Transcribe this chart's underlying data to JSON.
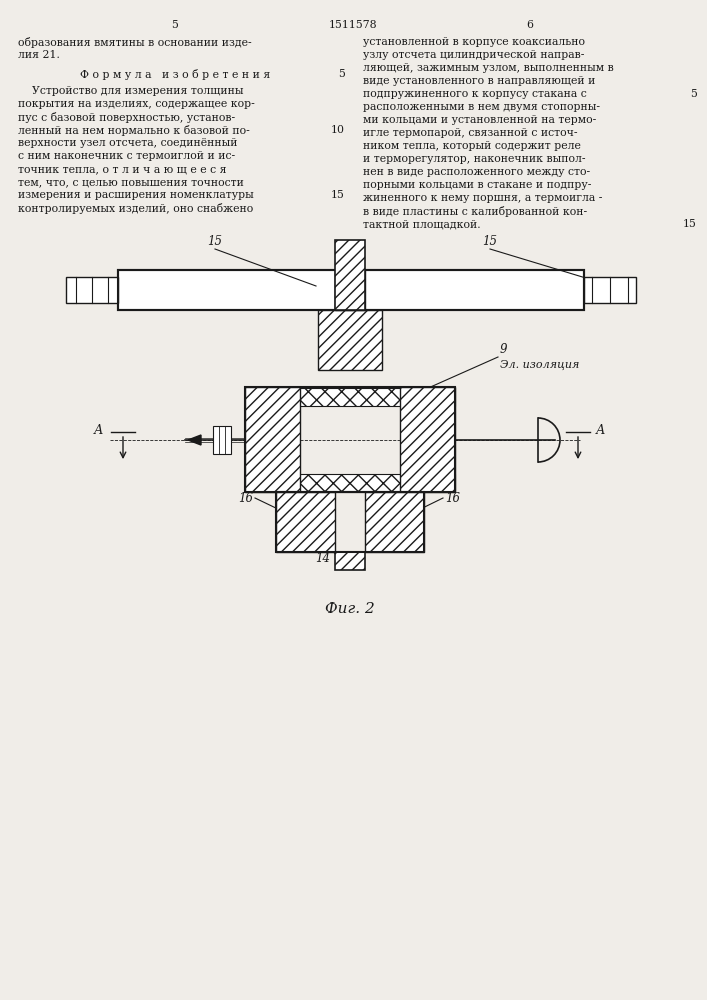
{
  "title": "1511578",
  "page_col_left": "5",
  "page_col_right": "6",
  "bg_color": "#f0ede8",
  "line_color": "#1a1a1a",
  "text_color": "#1a1a1a",
  "fig_caption": "Фиг. 2",
  "left_body_lines": [
    "    Устройство для измерения толщины",
    "покрытия на изделиях, содержащее кор-",
    "пус с базовой поверхностью, установ-",
    "ленный на нем нормально к базовой по-",
    "верхности узел отсчета, соединённый",
    "с ним наконечник с термоиглой и ис-",
    "точник тепла, о т л и ч а ю щ е е с я",
    "тем, что, с целью повышения точности",
    "измерения и расширения номенклатуры",
    "контролируемых изделий, оно снабжено"
  ],
  "right_body_lines": [
    "установленной в корпусе коаксиально",
    "узлу отсчета цилиндрической направ-",
    "ляющей, зажимным узлом, выполненным в",
    "виде установленного в направляющей и",
    "подпружиненного к корпусу стакана с",
    "расположенными в нем двумя стопорны-",
    "ми кольцами и установленной на термо-",
    "игле термопарой, связанной с источ-",
    "ником тепла, который содержит реле",
    "и терморегулятор, наконечник выпол-",
    "нен в виде расположенного между сто-",
    "порными кольцами в стакане и подпру-",
    "жиненного к нему поршня, а термоигла -",
    "в виде пластины с калиброванной кон-",
    "тактной площадкой."
  ],
  "left_top_lines": [
    "образования вмятины в основании изде-",
    "лия 21."
  ]
}
